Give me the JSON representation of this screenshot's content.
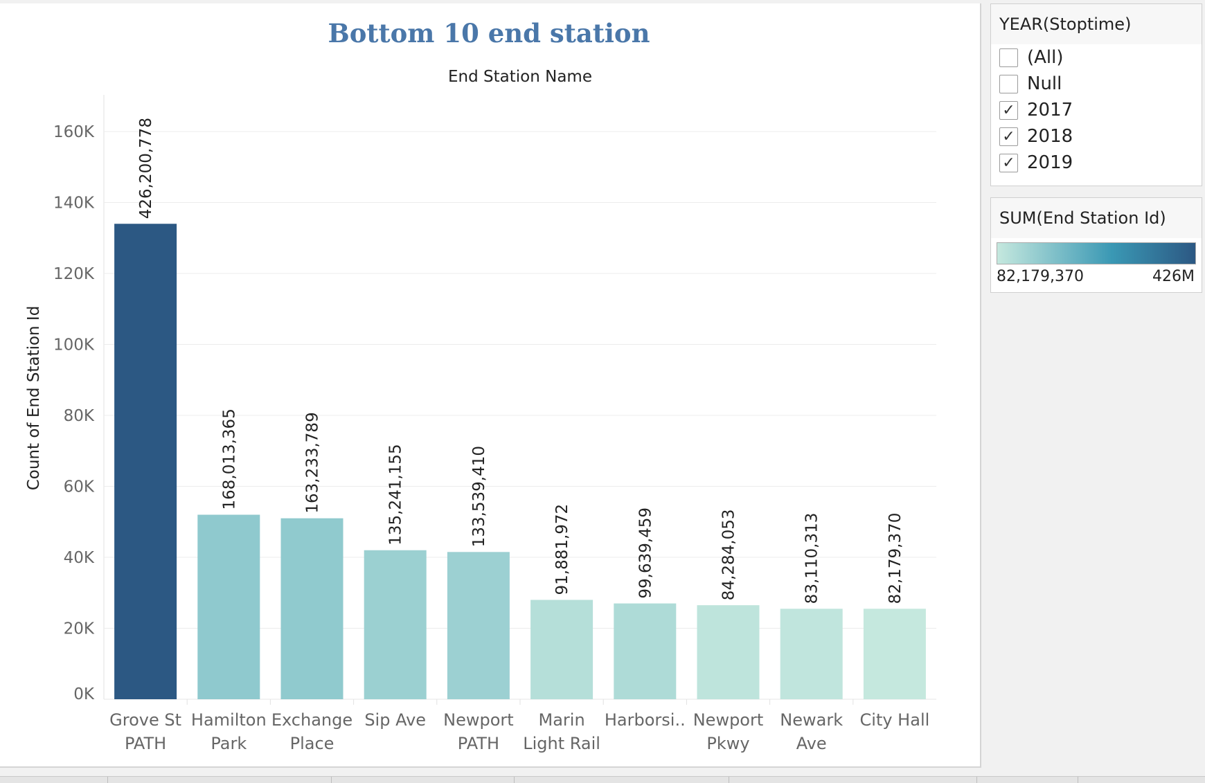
{
  "filter": {
    "title": "YEAR(Stoptime)",
    "items": [
      {
        "label": "(All)",
        "checked": false
      },
      {
        "label": "Null",
        "checked": false
      },
      {
        "label": "2017",
        "checked": true
      },
      {
        "label": "2018",
        "checked": true
      },
      {
        "label": "2019",
        "checked": true
      }
    ]
  },
  "legend": {
    "title": "SUM(End Station Id)",
    "min_label": "82,179,370",
    "max_label": "426M",
    "colors": [
      "#c5e8de",
      "#3a98b4",
      "#2c5883"
    ]
  },
  "colors": {
    "title": "#4a77a9",
    "axis_text": "#666666",
    "grid": "#ececec"
  },
  "chart_data": {
    "type": "bar",
    "title": "Bottom 10 end station",
    "column_header": "End Station Name",
    "ylabel": "Count of End Station Id",
    "ylim": [
      0,
      170000
    ],
    "yticks": [
      0,
      20000,
      40000,
      60000,
      80000,
      100000,
      120000,
      140000,
      160000
    ],
    "ytick_labels": [
      "0K",
      "20K",
      "40K",
      "60K",
      "80K",
      "100K",
      "120K",
      "140K",
      "160K"
    ],
    "categories": [
      [
        "Grove St",
        "PATH"
      ],
      [
        "Hamilton",
        "Park"
      ],
      [
        "Exchange",
        "Place"
      ],
      [
        "Sip Ave"
      ],
      [
        "Newport",
        "PATH"
      ],
      [
        "Marin",
        "Light Rail"
      ],
      [
        "Harborsi.."
      ],
      [
        "Newport",
        "Pkwy"
      ],
      [
        "Newark",
        "Ave"
      ],
      [
        "City Hall"
      ]
    ],
    "values": [
      134000,
      52000,
      51000,
      42000,
      41500,
      28000,
      27000,
      26500,
      25500,
      25500
    ],
    "data_labels": [
      "426,200,778",
      "168,013,365",
      "163,233,789",
      "135,241,155",
      "133,539,410",
      "91,881,972",
      "99,639,459",
      "84,284,053",
      "83,110,313",
      "82,179,370"
    ],
    "color_values": [
      426200778,
      168013365,
      163233789,
      135241155,
      133539410,
      91881972,
      99639459,
      84284053,
      83110313,
      82179370
    ]
  }
}
